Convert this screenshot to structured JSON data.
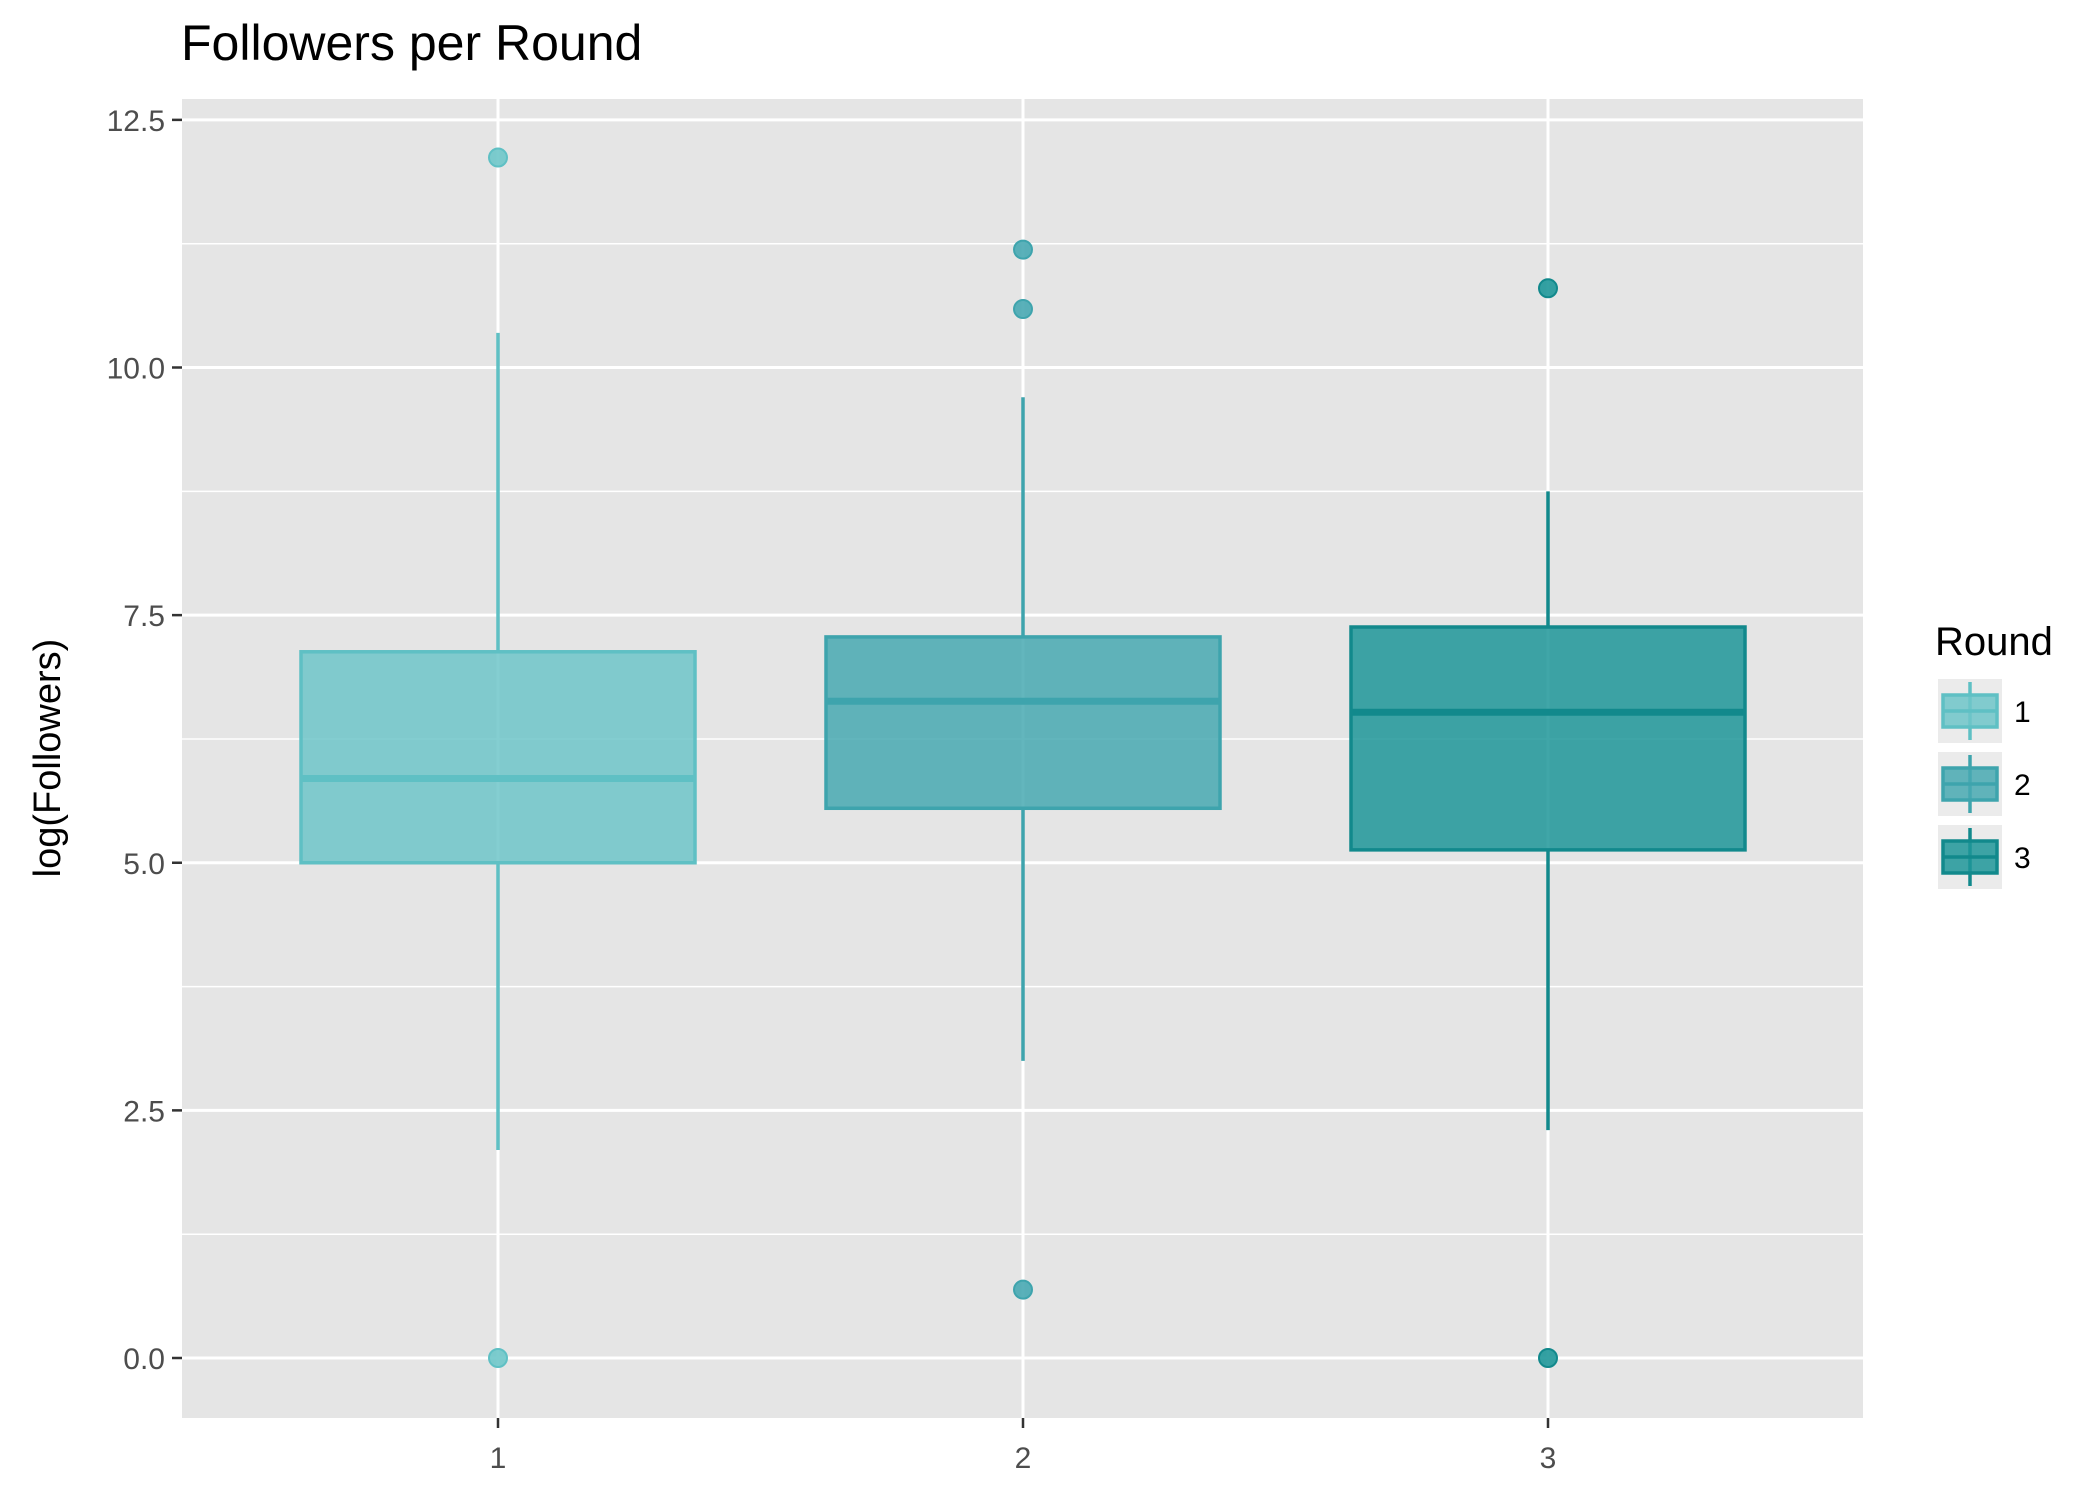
{
  "chart_data": {
    "type": "boxplot",
    "title": "Followers per Round",
    "xlabel": "",
    "ylabel": "log(Followers)",
    "ylim": [
      -0.6,
      12.7
    ],
    "y_ticks": [
      "0.0",
      "2.5",
      "5.0",
      "7.5",
      "10.0",
      "12.5"
    ],
    "y_tick_values": [
      0,
      2.5,
      5,
      7.5,
      10,
      12.5
    ],
    "categories": [
      "1",
      "2",
      "3"
    ],
    "grid": true,
    "legend": {
      "title": "Round",
      "position": "right",
      "labels": [
        "1",
        "2",
        "3"
      ]
    },
    "series": [
      {
        "category": "1",
        "fill": "#6ec6c9",
        "stroke": "#5fc0c4",
        "whisker_low": 2.1,
        "q1": 5.0,
        "median": 5.85,
        "q3": 7.13,
        "whisker_high": 10.35,
        "outliers": [
          12.12,
          0.0
        ]
      },
      {
        "category": "2",
        "fill": "#48a9b2",
        "stroke": "#3ea4ad",
        "whisker_low": 3.0,
        "q1": 5.55,
        "median": 6.63,
        "q3": 7.28,
        "whisker_high": 9.7,
        "outliers": [
          11.19,
          10.59,
          0.69
        ]
      },
      {
        "category": "3",
        "fill": "#1e9799",
        "stroke": "#12898c",
        "whisker_low": 2.3,
        "q1": 5.13,
        "median": 6.52,
        "q3": 7.38,
        "whisker_high": 8.75,
        "outliers": [
          10.8,
          0.0
        ]
      }
    ]
  }
}
